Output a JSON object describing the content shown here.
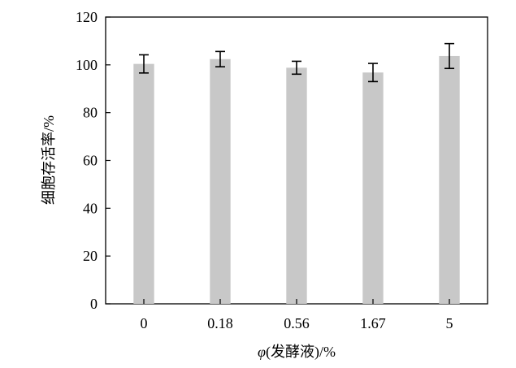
{
  "chart_data": {
    "type": "bar",
    "categories": [
      "0",
      "0.18",
      "0.56",
      "1.67",
      "5"
    ],
    "values": [
      100.4,
      102.4,
      98.8,
      96.8,
      103.7
    ],
    "errors": [
      3.8,
      3.2,
      2.7,
      3.8,
      5.2
    ],
    "ylim": [
      0,
      120
    ],
    "yticks": [
      0,
      20,
      40,
      60,
      80,
      100,
      120
    ],
    "xlabel_italic": "φ",
    "xlabel_rest": "(发酵液)/%",
    "ylabel": "细胞存活率/%",
    "bar_color": "#c8c8c8",
    "error_color": "#000000",
    "grid": false
  }
}
